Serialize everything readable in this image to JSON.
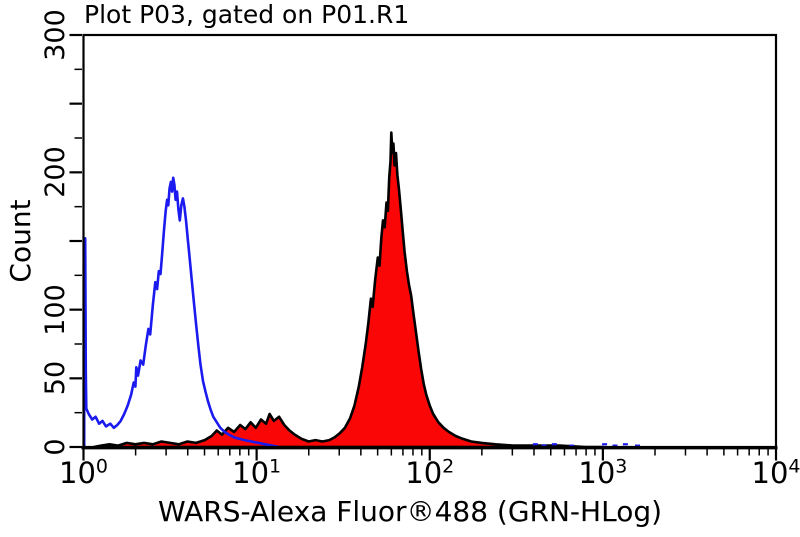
{
  "chart_data": {
    "type": "area",
    "title": "Plot P03, gated on P01.R1",
    "xlabel": "WARS-Alexa Fluor®488 (GRN-HLog)",
    "ylabel": "Count",
    "x_scale": "log10",
    "x_range": [
      1,
      10000
    ],
    "ylim": [
      0,
      300
    ],
    "grid": false,
    "legend": "none",
    "x_tick_base": "10",
    "x_major_tick_exponents": [
      0,
      1,
      2,
      3,
      4
    ],
    "y_tick_minor_step": 25,
    "y_major_tick_step": 50,
    "y_labeled_ticks": [
      0,
      50,
      100,
      200,
      300
    ],
    "colors": {
      "control_line": "#1b1bef",
      "sample_fill": "#fa0606",
      "sample_outline": "#000000",
      "axis": "#000000",
      "background": "#ffffff"
    },
    "peaks": {
      "control": {
        "x_approx": 3.2,
        "count_approx": 196
      },
      "sample": {
        "x_approx": 60,
        "count_approx": 229
      }
    },
    "series": [
      {
        "name": "control-open-histogram",
        "style": "open-line",
        "color_key": "control_line",
        "x_encoding": "log10",
        "points": [
          [
            0.004,
            0
          ],
          [
            0.004,
            150
          ],
          [
            0.01,
            152
          ],
          [
            0.013,
            55
          ],
          [
            0.016,
            28
          ],
          [
            0.03,
            24
          ],
          [
            0.05,
            20
          ],
          [
            0.07,
            22
          ],
          [
            0.09,
            17
          ],
          [
            0.11,
            19
          ],
          [
            0.13,
            15
          ],
          [
            0.155,
            17
          ],
          [
            0.175,
            14
          ],
          [
            0.195,
            16
          ],
          [
            0.215,
            19
          ],
          [
            0.235,
            24
          ],
          [
            0.255,
            30
          ],
          [
            0.275,
            38
          ],
          [
            0.29,
            47
          ],
          [
            0.3,
            44
          ],
          [
            0.305,
            58
          ],
          [
            0.315,
            52
          ],
          [
            0.33,
            63
          ],
          [
            0.345,
            60
          ],
          [
            0.36,
            74
          ],
          [
            0.375,
            86
          ],
          [
            0.385,
            82
          ],
          [
            0.4,
            103
          ],
          [
            0.415,
            120
          ],
          [
            0.425,
            115
          ],
          [
            0.435,
            128
          ],
          [
            0.445,
            126
          ],
          [
            0.455,
            142
          ],
          [
            0.465,
            158
          ],
          [
            0.475,
            172
          ],
          [
            0.483,
            180
          ],
          [
            0.49,
            176
          ],
          [
            0.497,
            188
          ],
          [
            0.505,
            193
          ],
          [
            0.512,
            186
          ],
          [
            0.518,
            196
          ],
          [
            0.525,
            191
          ],
          [
            0.532,
            180
          ],
          [
            0.54,
            186
          ],
          [
            0.548,
            173
          ],
          [
            0.556,
            165
          ],
          [
            0.565,
            176
          ],
          [
            0.574,
            181
          ],
          [
            0.583,
            175
          ],
          [
            0.592,
            165
          ],
          [
            0.602,
            152
          ],
          [
            0.613,
            138
          ],
          [
            0.625,
            122
          ],
          [
            0.637,
            106
          ],
          [
            0.65,
            90
          ],
          [
            0.663,
            74
          ],
          [
            0.676,
            60
          ],
          [
            0.69,
            48
          ],
          [
            0.705,
            40
          ],
          [
            0.72,
            33
          ],
          [
            0.735,
            27
          ],
          [
            0.75,
            22
          ],
          [
            0.77,
            18
          ],
          [
            0.79,
            14
          ],
          [
            0.815,
            11
          ],
          [
            0.84,
            9
          ],
          [
            0.87,
            7
          ],
          [
            0.9,
            6
          ],
          [
            0.93,
            5
          ],
          [
            0.97,
            4
          ],
          [
            1.01,
            3
          ],
          [
            1.05,
            2
          ],
          [
            1.09,
            1
          ],
          [
            1.13,
            0
          ]
        ]
      },
      {
        "name": "sample-filled-histogram",
        "style": "filled-area",
        "color_key": "sample_fill",
        "outline_key": "sample_outline",
        "x_encoding": "log10",
        "points": [
          [
            0.06,
            0
          ],
          [
            0.1,
            1
          ],
          [
            0.15,
            2
          ],
          [
            0.2,
            1
          ],
          [
            0.25,
            3
          ],
          [
            0.3,
            2
          ],
          [
            0.35,
            3
          ],
          [
            0.4,
            2
          ],
          [
            0.45,
            4
          ],
          [
            0.5,
            3
          ],
          [
            0.55,
            2
          ],
          [
            0.6,
            4
          ],
          [
            0.65,
            3
          ],
          [
            0.7,
            5
          ],
          [
            0.74,
            8
          ],
          [
            0.77,
            12
          ],
          [
            0.8,
            9
          ],
          [
            0.835,
            14
          ],
          [
            0.87,
            11
          ],
          [
            0.905,
            16
          ],
          [
            0.935,
            13
          ],
          [
            0.965,
            18
          ],
          [
            0.995,
            14
          ],
          [
            1.025,
            20
          ],
          [
            1.055,
            17
          ],
          [
            1.075,
            24
          ],
          [
            1.1,
            19
          ],
          [
            1.13,
            22
          ],
          [
            1.16,
            16
          ],
          [
            1.19,
            12
          ],
          [
            1.22,
            9
          ],
          [
            1.26,
            6
          ],
          [
            1.3,
            4
          ],
          [
            1.34,
            5
          ],
          [
            1.38,
            4
          ],
          [
            1.42,
            5
          ],
          [
            1.45,
            7
          ],
          [
            1.48,
            10
          ],
          [
            1.51,
            14
          ],
          [
            1.54,
            21
          ],
          [
            1.565,
            30
          ],
          [
            1.59,
            44
          ],
          [
            1.61,
            58
          ],
          [
            1.63,
            75
          ],
          [
            1.645,
            90
          ],
          [
            1.66,
            108
          ],
          [
            1.67,
            102
          ],
          [
            1.685,
            122
          ],
          [
            1.7,
            138
          ],
          [
            1.71,
            132
          ],
          [
            1.72,
            152
          ],
          [
            1.73,
            165
          ],
          [
            1.74,
            160
          ],
          [
            1.75,
            178
          ],
          [
            1.758,
            172
          ],
          [
            1.766,
            196
          ],
          [
            1.773,
            208
          ],
          [
            1.778,
            229
          ],
          [
            1.784,
            214
          ],
          [
            1.79,
            221
          ],
          [
            1.797,
            205
          ],
          [
            1.805,
            214
          ],
          [
            1.813,
            198
          ],
          [
            1.822,
            188
          ],
          [
            1.832,
            174
          ],
          [
            1.843,
            158
          ],
          [
            1.855,
            142
          ],
          [
            1.868,
            128
          ],
          [
            1.88,
            118
          ],
          [
            1.893,
            110
          ],
          [
            1.905,
            98
          ],
          [
            1.92,
            84
          ],
          [
            1.935,
            70
          ],
          [
            1.95,
            57
          ],
          [
            1.965,
            46
          ],
          [
            1.98,
            38
          ],
          [
            2.0,
            30
          ],
          [
            2.02,
            24
          ],
          [
            2.05,
            18
          ],
          [
            2.08,
            14
          ],
          [
            2.11,
            11
          ],
          [
            2.15,
            8
          ],
          [
            2.19,
            6
          ],
          [
            2.24,
            4
          ],
          [
            2.3,
            3
          ],
          [
            2.38,
            2
          ],
          [
            2.48,
            1
          ],
          [
            2.6,
            1
          ],
          [
            2.75,
            1
          ],
          [
            2.9,
            0
          ],
          [
            3.0,
            0
          ]
        ]
      }
    ],
    "baseline_events": {
      "color_key": "control_line",
      "x_encoding": "log10",
      "points": [
        [
          2.61,
          2
        ],
        [
          2.66,
          1
        ],
        [
          2.72,
          2
        ],
        [
          2.82,
          1
        ],
        [
          3.01,
          2
        ],
        [
          3.07,
          1
        ],
        [
          3.13,
          2
        ],
        [
          3.2,
          1
        ]
      ]
    }
  }
}
